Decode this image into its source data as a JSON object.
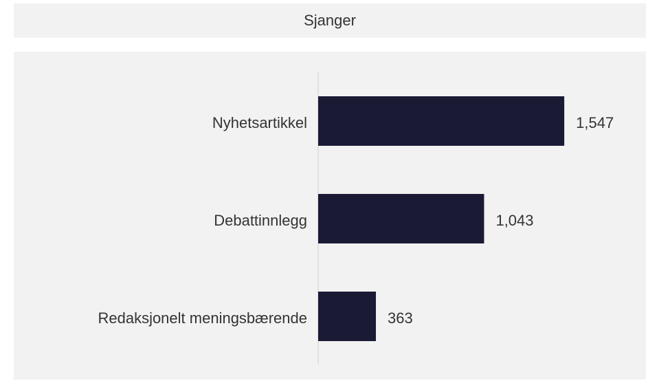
{
  "chart_data": {
    "type": "bar",
    "orientation": "horizontal",
    "title": "Sjanger",
    "categories": [
      "Nyhetsartikkel",
      "Debattinnlegg",
      "Redaksjonelt meningsbærende"
    ],
    "values": [
      1547,
      1043,
      363
    ],
    "value_labels": [
      "1,547",
      "1,043",
      "363"
    ],
    "color": "#1a1a35",
    "xlim": [
      0,
      2000
    ]
  }
}
